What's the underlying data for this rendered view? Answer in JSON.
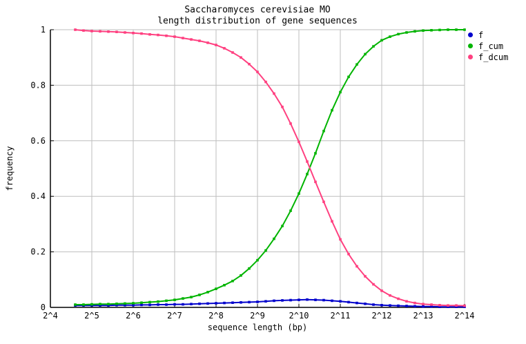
{
  "chart_data": {
    "type": "line",
    "title_line1": "Saccharomyces cerevisiae MO",
    "title_line2": "length distribution of gene sequences",
    "xlabel": "sequence length (bp)",
    "ylabel": "frequency",
    "x_scale": "log2",
    "xlim_log2": [
      4,
      14
    ],
    "ylim": [
      0,
      1
    ],
    "grid": true,
    "legend_position": "outside-top-right",
    "x_tick_labels": [
      "2^4",
      "2^5",
      "2^6",
      "2^7",
      "2^8",
      "2^9",
      "2^10",
      "2^11",
      "2^12",
      "2^13",
      "2^14"
    ],
    "x_tick_log2": [
      4,
      5,
      6,
      7,
      8,
      9,
      10,
      11,
      12,
      13,
      14
    ],
    "y_tick_labels": [
      "0",
      "0.2",
      "0.4",
      "0.6",
      "0.8",
      "1"
    ],
    "y_tick_values": [
      0,
      0.2,
      0.4,
      0.6,
      0.8,
      1
    ],
    "colors": {
      "grid": "#bebebe",
      "axis": "#000000",
      "background": "#ffffff"
    },
    "x_log2": [
      4.6,
      4.8,
      5.0,
      5.2,
      5.4,
      5.6,
      5.8,
      6.0,
      6.2,
      6.4,
      6.6,
      6.8,
      7.0,
      7.2,
      7.4,
      7.6,
      7.8,
      8.0,
      8.2,
      8.4,
      8.6,
      8.8,
      9.0,
      9.2,
      9.4,
      9.6,
      9.8,
      10.0,
      10.2,
      10.4,
      10.6,
      10.8,
      11.0,
      11.2,
      11.4,
      11.6,
      11.8,
      12.0,
      12.2,
      12.4,
      12.6,
      12.8,
      13.0,
      13.2,
      13.4,
      13.6,
      13.8,
      14.0
    ],
    "series": [
      {
        "name": "f",
        "color": "#0000cc",
        "marker": "square",
        "values": [
          0.007,
          0.007,
          0.007,
          0.007,
          0.007,
          0.008,
          0.008,
          0.008,
          0.009,
          0.009,
          0.01,
          0.01,
          0.011,
          0.011,
          0.012,
          0.013,
          0.014,
          0.015,
          0.016,
          0.017,
          0.018,
          0.019,
          0.02,
          0.022,
          0.024,
          0.025,
          0.026,
          0.027,
          0.028,
          0.027,
          0.026,
          0.024,
          0.022,
          0.019,
          0.016,
          0.013,
          0.01,
          0.008,
          0.007,
          0.006,
          0.005,
          0.004,
          0.003,
          0.003,
          0.002,
          0.002,
          0.002,
          0.002
        ]
      },
      {
        "name": "f_cum",
        "color": "#00b400",
        "marker": "square",
        "values": [
          0.01,
          0.01,
          0.011,
          0.012,
          0.012,
          0.013,
          0.014,
          0.015,
          0.017,
          0.019,
          0.021,
          0.024,
          0.027,
          0.032,
          0.037,
          0.045,
          0.055,
          0.067,
          0.08,
          0.095,
          0.115,
          0.14,
          0.17,
          0.205,
          0.247,
          0.293,
          0.348,
          0.41,
          0.48,
          0.555,
          0.635,
          0.71,
          0.775,
          0.83,
          0.875,
          0.912,
          0.94,
          0.962,
          0.975,
          0.984,
          0.99,
          0.994,
          0.997,
          0.998,
          0.999,
          1.0,
          1.0,
          1.0
        ]
      },
      {
        "name": "f_dcum",
        "color": "#ff4080",
        "marker": "square",
        "values": [
          1.0,
          0.997,
          0.995,
          0.994,
          0.993,
          0.992,
          0.99,
          0.988,
          0.986,
          0.983,
          0.981,
          0.978,
          0.975,
          0.97,
          0.965,
          0.96,
          0.953,
          0.945,
          0.933,
          0.918,
          0.9,
          0.876,
          0.848,
          0.812,
          0.77,
          0.722,
          0.662,
          0.596,
          0.525,
          0.452,
          0.38,
          0.31,
          0.245,
          0.192,
          0.148,
          0.112,
          0.083,
          0.06,
          0.043,
          0.031,
          0.022,
          0.016,
          0.012,
          0.01,
          0.008,
          0.007,
          0.007,
          0.006
        ]
      }
    ]
  }
}
